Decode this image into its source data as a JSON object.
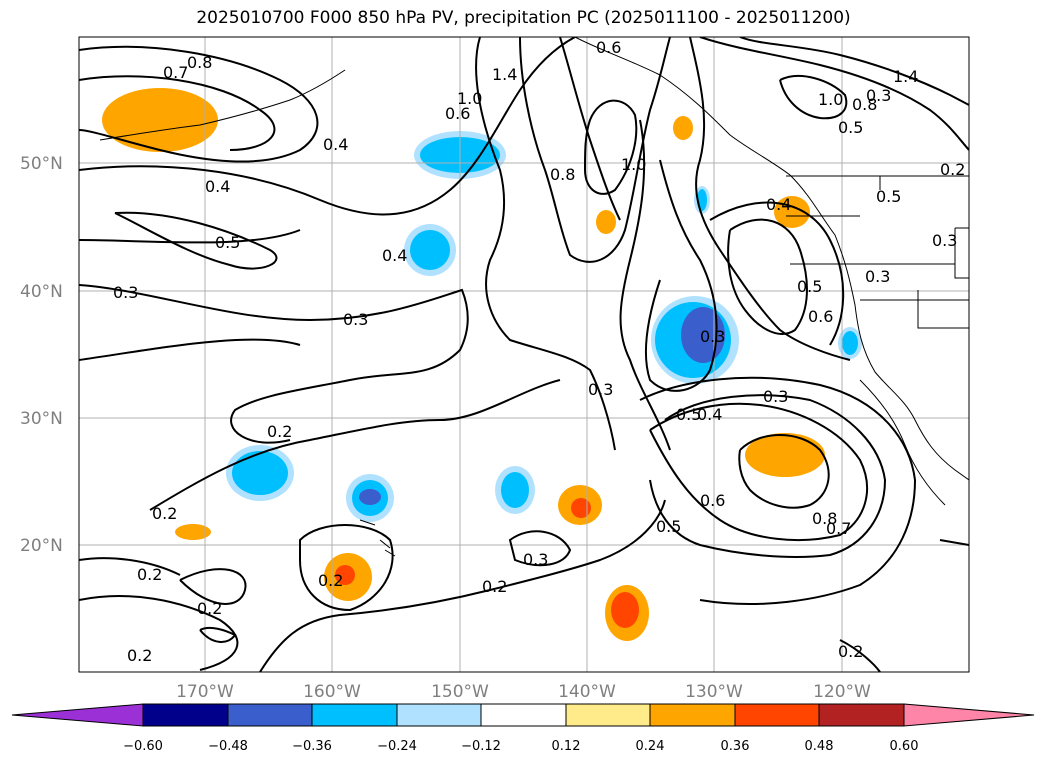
{
  "title": "2025010700 F000 850 hPa PV, precipitation PC (2025011100 - 2025011200)",
  "map": {
    "lat_labels": [
      "50°N",
      "40°N",
      "30°N",
      "20°N"
    ],
    "lon_labels": [
      "170°W",
      "160°W",
      "150°W",
      "140°W",
      "130°W",
      "120°W"
    ]
  },
  "colorbar": {
    "colors": [
      "#9b30d6",
      "#00008b",
      "#3a5fcd",
      "#00bfff",
      "#b0e2ff",
      "#ffffff",
      "#ffeb8a",
      "#ffa500",
      "#ff4500",
      "#b22222",
      "#ff85a8"
    ],
    "ticks": [
      "−0.60",
      "−0.48",
      "−0.36",
      "−0.24",
      "−0.12",
      "0.12",
      "0.24",
      "0.36",
      "0.48",
      "0.60"
    ]
  },
  "contour_labels": [
    "0.8",
    "0.7",
    "0.6",
    "1.4",
    "1.0",
    "0.6",
    "0.4",
    "0.4",
    "0.5",
    "0.3",
    "0.4",
    "0.3",
    "0.8",
    "1.0",
    "0.2",
    "0.2",
    "0.2",
    "0.2",
    "0.2",
    "0.2",
    "0.3",
    "0.2",
    "0.3",
    "0.3",
    "0.5",
    "0.4",
    "0.6",
    "0.5",
    "0.8",
    "0.7",
    "0.3",
    "0.4",
    "0.5",
    "0.6",
    "0.3",
    "0.5",
    "0.3",
    "1.0",
    "0.8",
    "0.5",
    "1.4",
    "0.2",
    "0.3",
    "0.2"
  ]
}
